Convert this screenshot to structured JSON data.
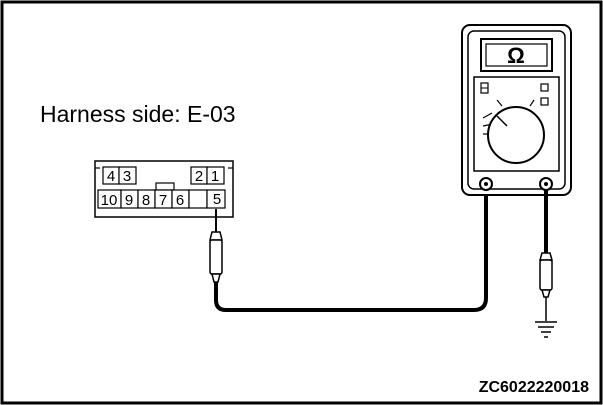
{
  "harness_label": "Harness side: E-03",
  "connector": {
    "top_pins": [
      "4",
      "3",
      "2",
      "1"
    ],
    "bottom_pins": [
      "10",
      "9",
      "8",
      "7",
      "6",
      "5"
    ]
  },
  "meter": {
    "display_symbol": "Ω"
  },
  "figure_code": "ZC6022220018"
}
